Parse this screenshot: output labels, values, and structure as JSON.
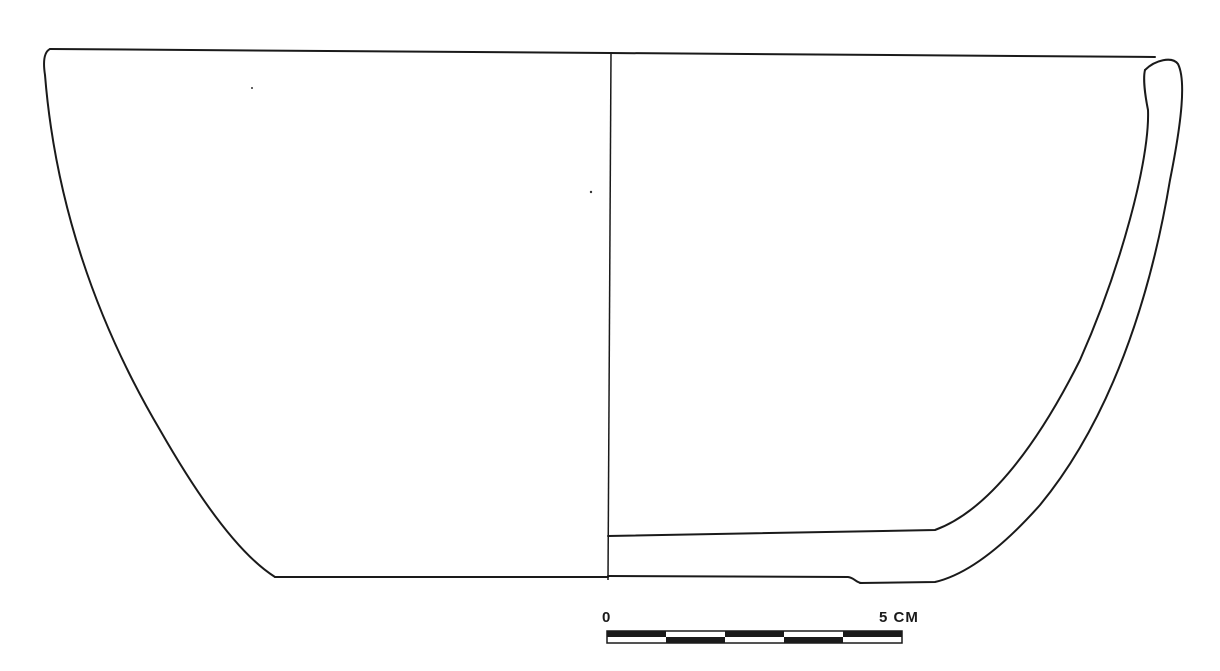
{
  "scale_bar": {
    "start_label": "0",
    "end_label": "5 CM",
    "segments": 5
  },
  "colors": {
    "ink": "#1a1a1a",
    "paper": "#ffffff"
  }
}
